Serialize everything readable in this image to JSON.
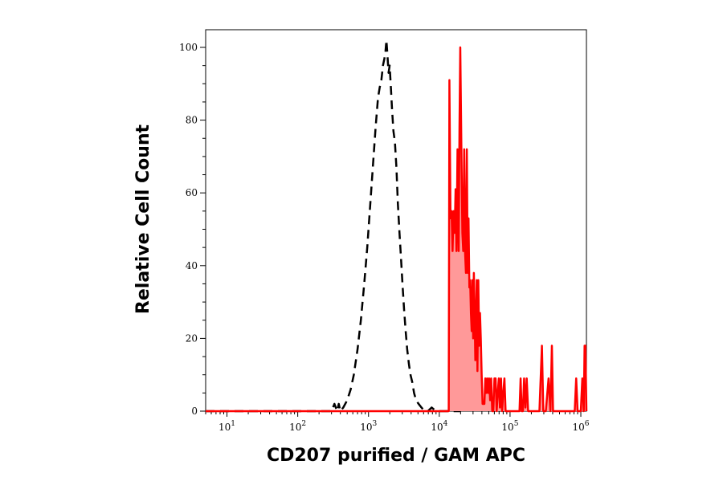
{
  "chart_data": {
    "type": "area",
    "xlabel": "CD207 purified / GAM APC",
    "ylabel": "Relative Cell Count",
    "x_scale": "log",
    "xlim": [
      5,
      1200000
    ],
    "ylim": [
      0,
      105
    ],
    "y_ticks": [
      0,
      20,
      40,
      60,
      80,
      100
    ],
    "x_ticks": [
      {
        "base": "10",
        "exp": "1",
        "value": 10
      },
      {
        "base": "10",
        "exp": "2",
        "value": 100
      },
      {
        "base": "10",
        "exp": "3",
        "value": 1000
      },
      {
        "base": "10",
        "exp": "4",
        "value": 10000
      },
      {
        "base": "10",
        "exp": "5",
        "value": 100000
      },
      {
        "base": "10",
        "exp": "6",
        "value": 1000000
      }
    ],
    "grid": false,
    "series": [
      {
        "style": "dashed-line",
        "color": "#000000",
        "points": [
          [
            5,
            0
          ],
          [
            300,
            0
          ],
          [
            330,
            2
          ],
          [
            360,
            0
          ],
          [
            380,
            2
          ],
          [
            400,
            0
          ],
          [
            440,
            1
          ],
          [
            500,
            3
          ],
          [
            560,
            6
          ],
          [
            620,
            10
          ],
          [
            700,
            17
          ],
          [
            780,
            25
          ],
          [
            870,
            35
          ],
          [
            960,
            45
          ],
          [
            1060,
            57
          ],
          [
            1160,
            68
          ],
          [
            1260,
            78
          ],
          [
            1360,
            86
          ],
          [
            1440,
            89
          ],
          [
            1520,
            91
          ],
          [
            1600,
            95
          ],
          [
            1680,
            97
          ],
          [
            1740,
            99
          ],
          [
            1790,
            102
          ],
          [
            1850,
            98
          ],
          [
            1920,
            93
          ],
          [
            1990,
            95
          ],
          [
            2070,
            89
          ],
          [
            2150,
            83
          ],
          [
            2250,
            77
          ],
          [
            2360,
            74
          ],
          [
            2480,
            67
          ],
          [
            2600,
            57
          ],
          [
            2740,
            49
          ],
          [
            2880,
            42
          ],
          [
            3020,
            35
          ],
          [
            3180,
            28
          ],
          [
            3350,
            22
          ],
          [
            3520,
            17
          ],
          [
            3720,
            13
          ],
          [
            3920,
            10
          ],
          [
            4150,
            8
          ],
          [
            4400,
            5
          ],
          [
            4700,
            3
          ],
          [
            5100,
            2
          ],
          [
            5600,
            1
          ],
          [
            6200,
            0
          ],
          [
            6900,
            0
          ],
          [
            7800,
            1
          ],
          [
            9000,
            0
          ],
          [
            20000,
            0
          ]
        ]
      },
      {
        "style": "filled",
        "color": "#ff0000",
        "fill": "#ff9999",
        "points": [
          [
            5,
            0
          ],
          [
            13000,
            0
          ],
          [
            13600,
            0
          ],
          [
            13900,
            91
          ],
          [
            14400,
            53
          ],
          [
            14900,
            55
          ],
          [
            15400,
            44
          ],
          [
            15900,
            55
          ],
          [
            16500,
            49
          ],
          [
            17000,
            61
          ],
          [
            17500,
            44
          ],
          [
            18100,
            72
          ],
          [
            18800,
            44
          ],
          [
            19300,
            78
          ],
          [
            19800,
            100
          ],
          [
            20500,
            73
          ],
          [
            21200,
            49
          ],
          [
            21800,
            44
          ],
          [
            22500,
            72
          ],
          [
            23100,
            44
          ],
          [
            23800,
            38
          ],
          [
            24500,
            72
          ],
          [
            25200,
            38
          ],
          [
            25900,
            53
          ],
          [
            26600,
            34
          ],
          [
            27300,
            36
          ],
          [
            28000,
            27
          ],
          [
            28700,
            22
          ],
          [
            29400,
            36
          ],
          [
            30100,
            20
          ],
          [
            30800,
            38
          ],
          [
            31600,
            27
          ],
          [
            32300,
            14
          ],
          [
            33000,
            22
          ],
          [
            33800,
            36
          ],
          [
            34600,
            11
          ],
          [
            35600,
            36
          ],
          [
            36600,
            18
          ],
          [
            37600,
            27
          ],
          [
            38600,
            20
          ],
          [
            39700,
            10
          ],
          [
            40900,
            2
          ],
          [
            42100,
            2
          ],
          [
            43400,
            2
          ],
          [
            44700,
            9
          ],
          [
            46100,
            5
          ],
          [
            47500,
            9
          ],
          [
            49000,
            5
          ],
          [
            50600,
            9
          ],
          [
            52300,
            3
          ],
          [
            54100,
            9
          ],
          [
            56000,
            0
          ],
          [
            58000,
            0
          ],
          [
            60200,
            9
          ],
          [
            62500,
            9
          ],
          [
            64700,
            0
          ],
          [
            67000,
            5
          ],
          [
            69400,
            9
          ],
          [
            71900,
            1
          ],
          [
            74500,
            9
          ],
          [
            77200,
            0
          ],
          [
            80200,
            5
          ],
          [
            83300,
            9
          ],
          [
            86500,
            0
          ],
          [
            90000,
            0
          ],
          [
            100000,
            0
          ],
          [
            120000,
            0
          ],
          [
            136000,
            0
          ],
          [
            141000,
            9
          ],
          [
            146000,
            0
          ],
          [
            152000,
            0
          ],
          [
            158000,
            9
          ],
          [
            165000,
            1
          ],
          [
            172000,
            9
          ],
          [
            180000,
            0
          ],
          [
            200000,
            0
          ],
          [
            230000,
            0
          ],
          [
            260000,
            0
          ],
          [
            282000,
            18
          ],
          [
            295000,
            0
          ],
          [
            320000,
            0
          ],
          [
            350000,
            9
          ],
          [
            372000,
            0
          ],
          [
            390000,
            18
          ],
          [
            405000,
            0
          ],
          [
            500000,
            0
          ],
          [
            700000,
            0
          ],
          [
            820000,
            0
          ],
          [
            860000,
            9
          ],
          [
            900000,
            0
          ],
          [
            950000,
            0
          ],
          [
            1000000,
            0
          ],
          [
            1050000,
            9
          ],
          [
            1100000,
            0
          ],
          [
            1130000,
            18
          ],
          [
            1160000,
            18
          ],
          [
            1200000,
            0
          ]
        ]
      }
    ]
  }
}
